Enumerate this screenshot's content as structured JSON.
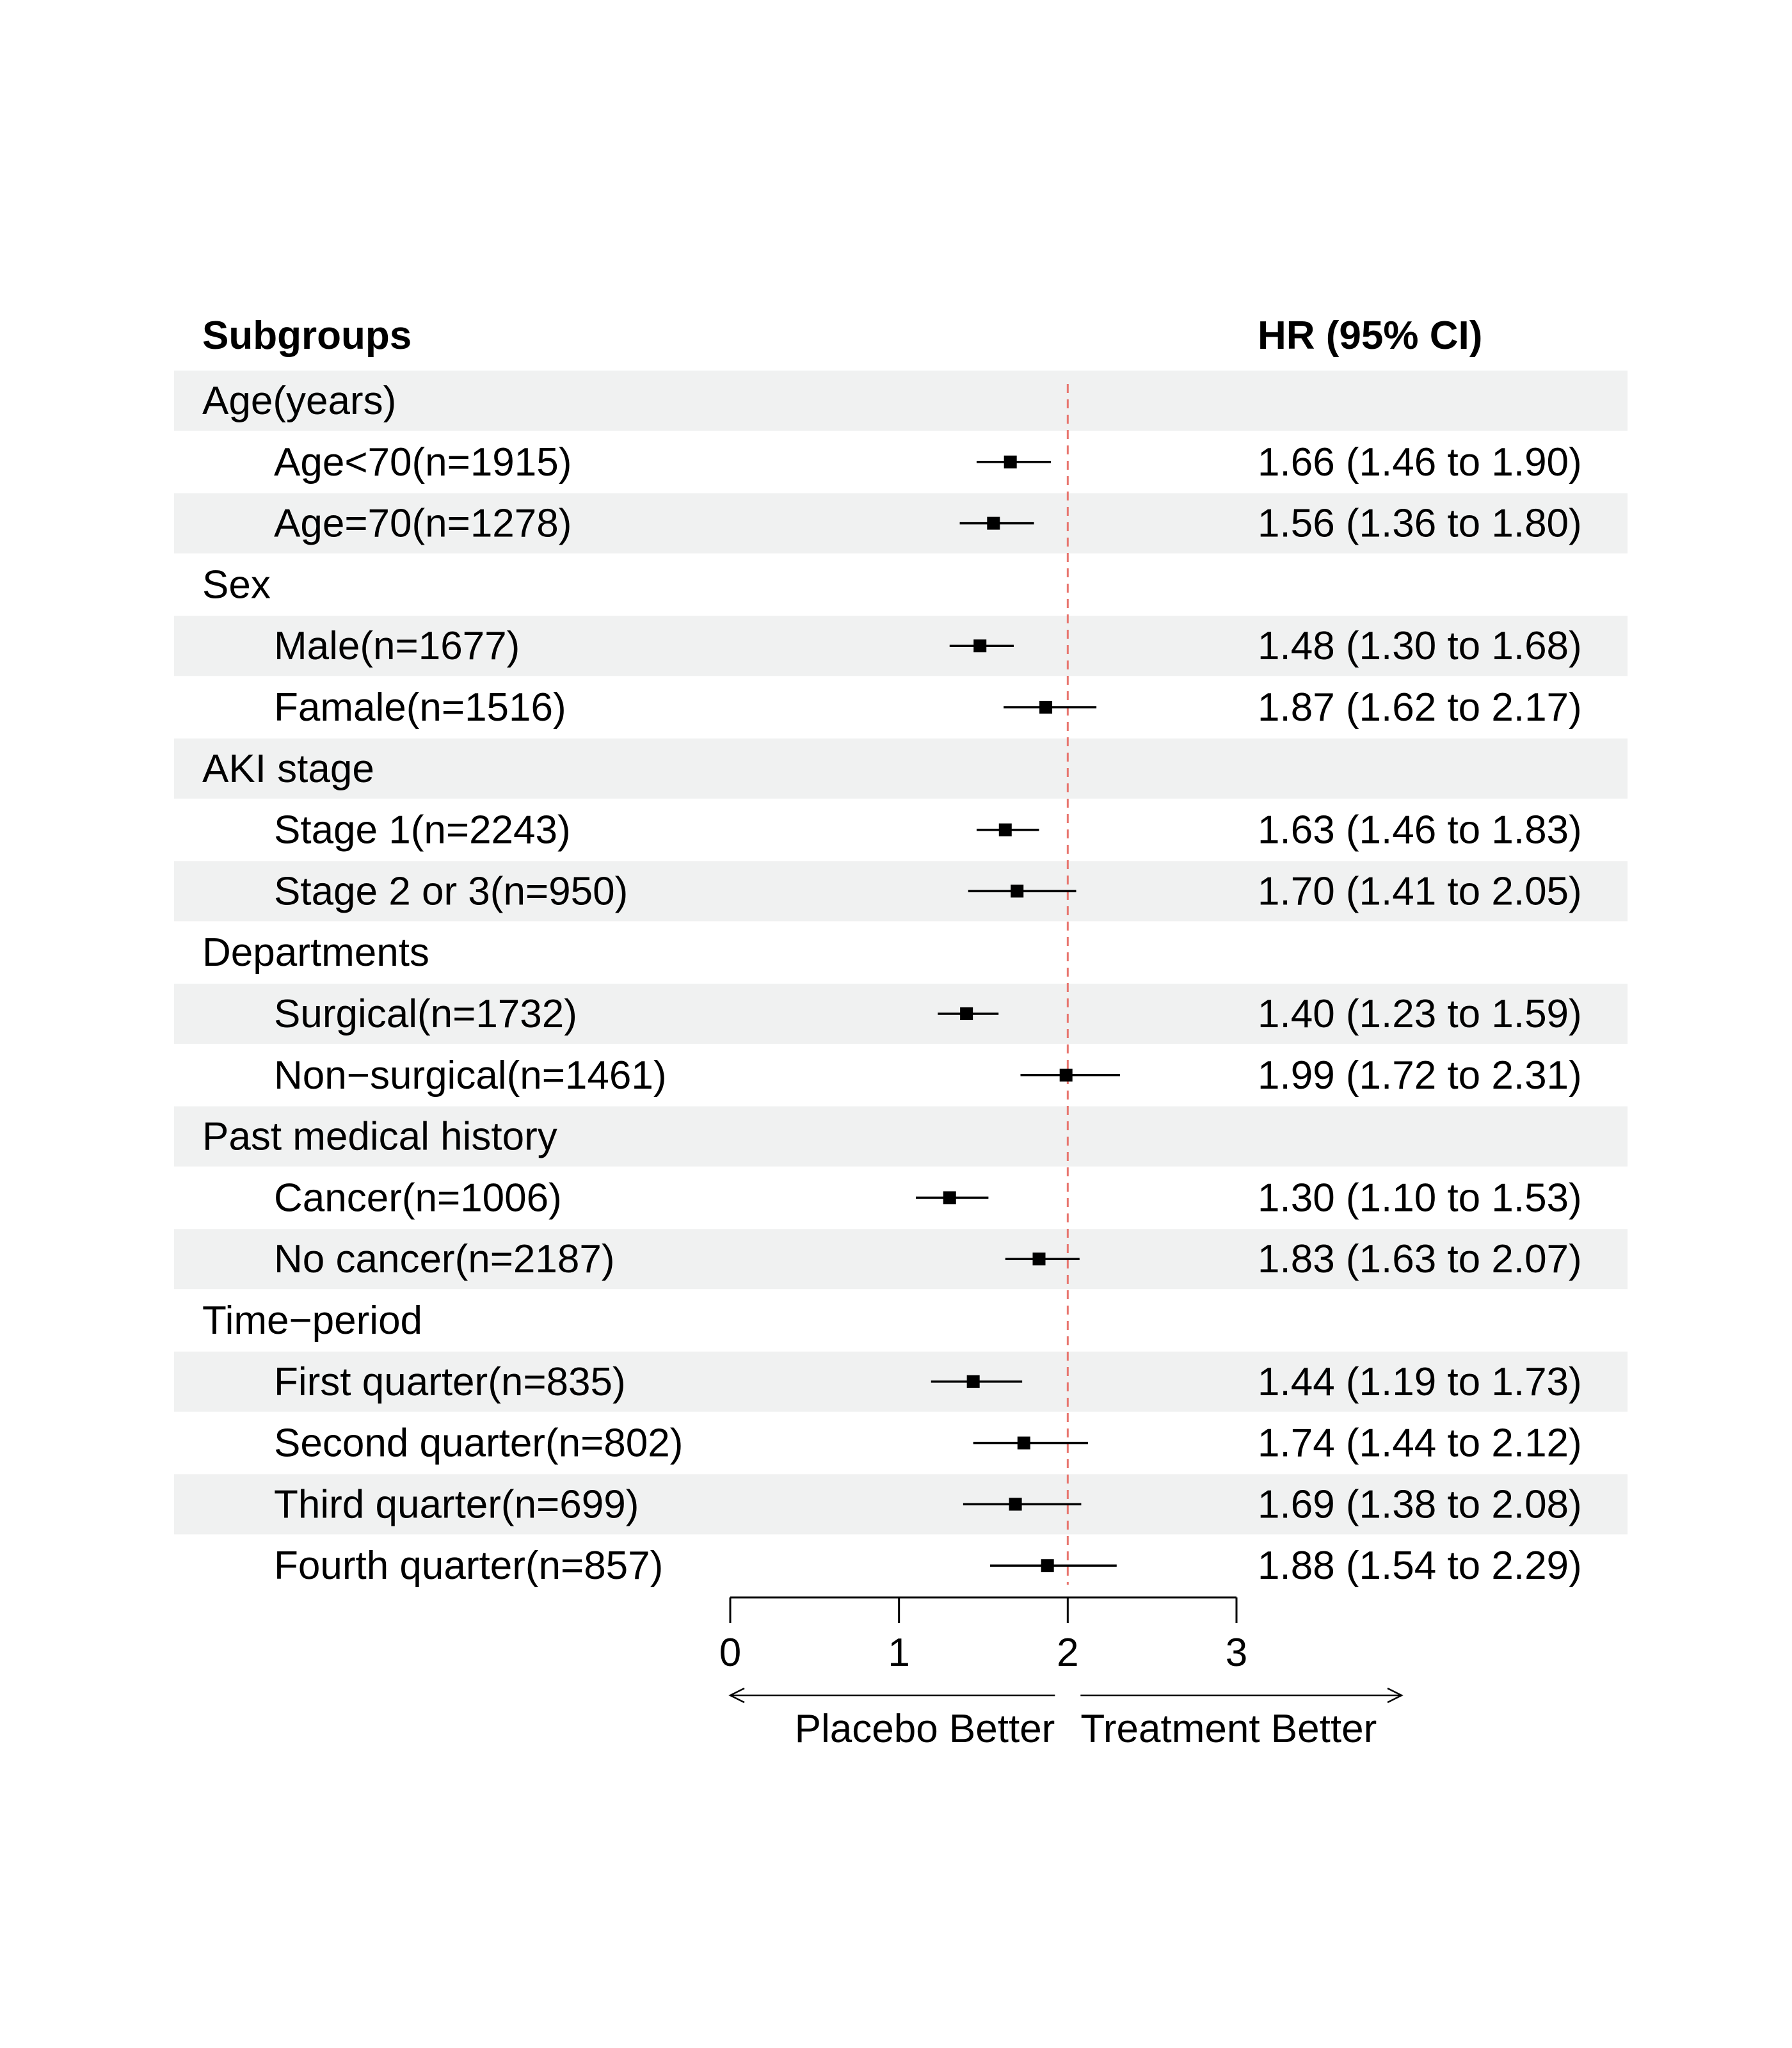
{
  "header": {
    "subgroups": "Subgroups",
    "hr": "HR (95% CI)"
  },
  "colors": {
    "band": "#f0f1f1",
    "reference_line": "#e8766f",
    "marker": "#000000"
  },
  "chart_data": {
    "type": "forest",
    "reference_value": 2,
    "xlim": [
      0,
      3
    ],
    "ticks": [
      0,
      1,
      2,
      3
    ],
    "direction_labels": {
      "left": "Placebo Better",
      "right": "Treatment Better"
    },
    "rows": [
      {
        "label": "Age(years)",
        "kind": "group"
      },
      {
        "label": "Age<70(n=1915)",
        "kind": "item",
        "hr": 1.66,
        "lo": 1.46,
        "hi": 1.9,
        "text": "1.66 (1.46 to 1.90)"
      },
      {
        "label": "Age=70(n=1278)",
        "kind": "item",
        "hr": 1.56,
        "lo": 1.36,
        "hi": 1.8,
        "text": "1.56 (1.36 to 1.80)"
      },
      {
        "label": "Sex",
        "kind": "group"
      },
      {
        "label": "Male(n=1677)",
        "kind": "item",
        "hr": 1.48,
        "lo": 1.3,
        "hi": 1.68,
        "text": "1.48 (1.30 to 1.68)"
      },
      {
        "label": "Famale(n=1516)",
        "kind": "item",
        "hr": 1.87,
        "lo": 1.62,
        "hi": 2.17,
        "text": "1.87 (1.62 to 2.17)"
      },
      {
        "label": "AKI stage",
        "kind": "group"
      },
      {
        "label": "Stage 1(n=2243)",
        "kind": "item",
        "hr": 1.63,
        "lo": 1.46,
        "hi": 1.83,
        "text": "1.63 (1.46 to 1.83)"
      },
      {
        "label": "Stage 2 or 3(n=950)",
        "kind": "item",
        "hr": 1.7,
        "lo": 1.41,
        "hi": 2.05,
        "text": "1.70 (1.41 to 2.05)"
      },
      {
        "label": "Departments",
        "kind": "group"
      },
      {
        "label": "Surgical(n=1732)",
        "kind": "item",
        "hr": 1.4,
        "lo": 1.23,
        "hi": 1.59,
        "text": "1.40 (1.23 to 1.59)"
      },
      {
        "label": "Non−surgical(n=1461)",
        "kind": "item",
        "hr": 1.99,
        "lo": 1.72,
        "hi": 2.31,
        "text": "1.99 (1.72 to 2.31)"
      },
      {
        "label": "Past medical history",
        "kind": "group"
      },
      {
        "label": "Cancer(n=1006)",
        "kind": "item",
        "hr": 1.3,
        "lo": 1.1,
        "hi": 1.53,
        "text": "1.30 (1.10 to 1.53)"
      },
      {
        "label": "No cancer(n=2187)",
        "kind": "item",
        "hr": 1.83,
        "lo": 1.63,
        "hi": 2.07,
        "text": "1.83 (1.63 to 2.07)"
      },
      {
        "label": "Time−period",
        "kind": "group"
      },
      {
        "label": "First quarter(n=835)",
        "kind": "item",
        "hr": 1.44,
        "lo": 1.19,
        "hi": 1.73,
        "text": "1.44 (1.19 to 1.73)"
      },
      {
        "label": "Second quarter(n=802)",
        "kind": "item",
        "hr": 1.74,
        "lo": 1.44,
        "hi": 2.12,
        "text": "1.74 (1.44 to 2.12)"
      },
      {
        "label": "Third quarter(n=699)",
        "kind": "item",
        "hr": 1.69,
        "lo": 1.38,
        "hi": 2.08,
        "text": "1.69 (1.38 to 2.08)"
      },
      {
        "label": "Fourth quarter(n=857)",
        "kind": "item",
        "hr": 1.88,
        "lo": 1.54,
        "hi": 2.29,
        "text": "1.88 (1.54 to 2.29)"
      }
    ]
  }
}
